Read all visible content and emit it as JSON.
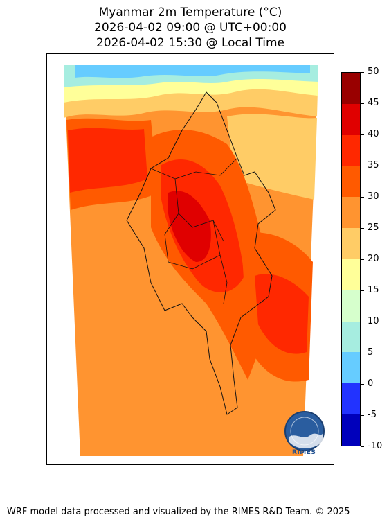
{
  "title": {
    "line1": "Myanmar 2m Temperature (°C)",
    "line2": "2026-04-02 09:00 @ UTC+00:00",
    "line3": "2026-04-02 15:30 @ Local Time"
  },
  "colorbar": {
    "ticks": [
      "50",
      "45",
      "40",
      "35",
      "30",
      "25",
      "20",
      "15",
      "10",
      "5",
      "0",
      "-5",
      "-10"
    ],
    "colors": [
      "#990000",
      "#e00000",
      "#ff2800",
      "#ff5a00",
      "#ff9430",
      "#ffcc66",
      "#ffff99",
      "#d6ffcc",
      "#a6ede0",
      "#66ccff",
      "#2233ff",
      "#0000bb"
    ]
  },
  "logo": {
    "name": "RIMES"
  },
  "footer": "WRF model data processed and visualized by the RIMES R&D Team. © 2025"
}
